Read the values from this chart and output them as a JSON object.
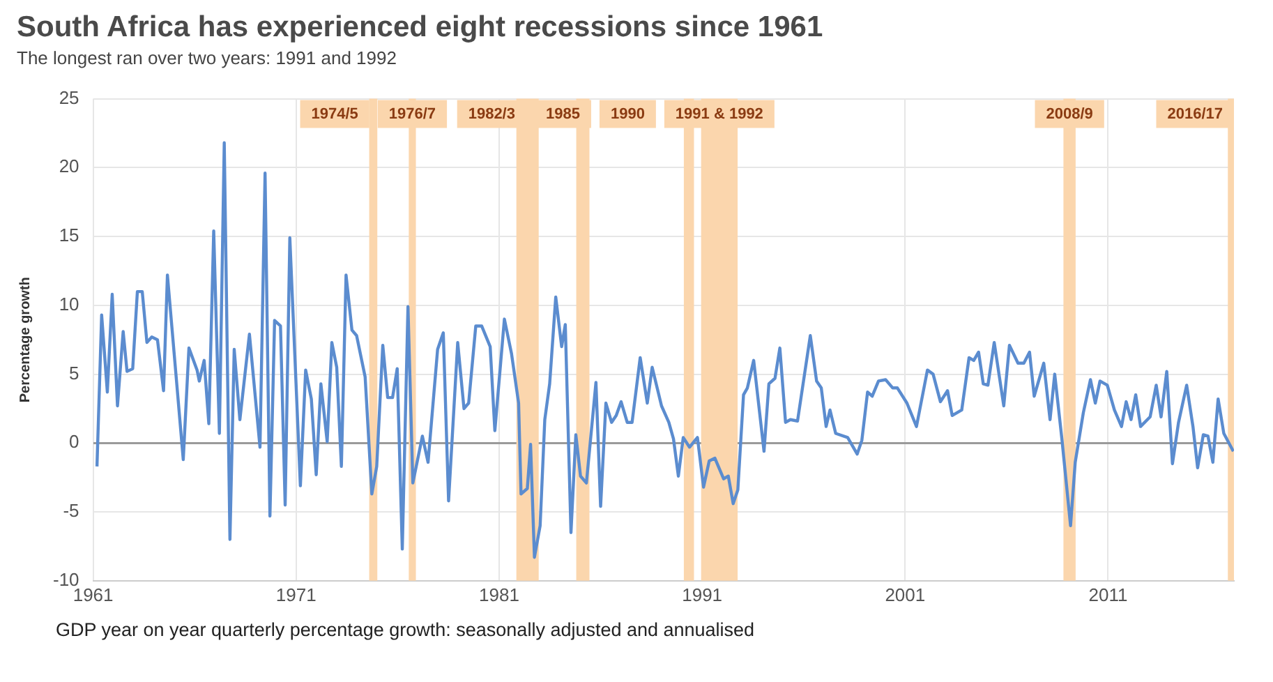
{
  "chart_data": {
    "type": "line",
    "title": "South Africa has experienced eight recessions since 1961",
    "subtitle": "The longest ran over two years: 1991 and 1992",
    "ylabel": "Percentage growth",
    "annotations": [
      "GDP year on year quarterly percentage growth: seasonally adjusted and annualised"
    ],
    "x": [
      1961.19,
      1961.42,
      1961.7,
      1961.94,
      1962.2,
      1962.48,
      1962.67,
      1962.95,
      1963.18,
      1963.42,
      1963.65,
      1963.89,
      1964.17,
      1964.47,
      1964.66,
      1965.44,
      1965.72,
      1966.12,
      1966.23,
      1966.47,
      1966.7,
      1966.94,
      1967.22,
      1967.46,
      1967.74,
      1967.95,
      1968.23,
      1968.7,
      1969.22,
      1969.47,
      1969.71,
      1969.94,
      1970.23,
      1970.46,
      1970.69,
      1971.21,
      1971.47,
      1971.75,
      1971.99,
      1972.22,
      1972.53,
      1972.76,
      1973.0,
      1973.23,
      1973.46,
      1973.75,
      1973.98,
      1974.4,
      1974.73,
      1974.97,
      1975.27,
      1975.51,
      1975.75,
      1975.98,
      1976.23,
      1976.51,
      1976.75,
      1977.22,
      1977.5,
      1977.97,
      1978.25,
      1978.51,
      1978.96,
      1979.27,
      1979.5,
      1979.85,
      1980.14,
      1980.56,
      1980.79,
      1981.26,
      1981.61,
      1981.96,
      1982.08,
      1982.39,
      1982.55,
      1982.74,
      1983.02,
      1983.25,
      1983.49,
      1983.79,
      1984.08,
      1984.26,
      1984.54,
      1984.78,
      1985.01,
      1985.3,
      1985.77,
      1986.0,
      1986.26,
      1986.54,
      1986.77,
      1987.01,
      1987.31,
      1987.55,
      1987.95,
      1988.3,
      1988.54,
      1989.0,
      1989.36,
      1989.59,
      1989.83,
      1990.07,
      1990.38,
      1990.77,
      1991.07,
      1991.35,
      1991.63,
      1992.06,
      1992.29,
      1992.53,
      1992.76,
      1993.04,
      1993.23,
      1993.54,
      1994.05,
      1994.29,
      1994.59,
      1994.83,
      1995.11,
      1995.35,
      1995.7,
      1996.33,
      1996.64,
      1996.87,
      1997.11,
      1997.3,
      1997.58,
      1998.17,
      1998.64,
      1998.87,
      1999.15,
      1999.38,
      1999.69,
      2000.04,
      2000.39,
      2000.62,
      2001.09,
      2001.56,
      2002.1,
      2002.38,
      2002.74,
      2003.09,
      2003.32,
      2003.79,
      2004.15,
      2004.38,
      2004.62,
      2004.85,
      2005.08,
      2005.39,
      2005.86,
      2006.14,
      2006.56,
      2006.85,
      2007.13,
      2007.36,
      2007.83,
      2008.14,
      2008.37,
      2008.73,
      2009.15,
      2009.38,
      2009.78,
      2010.13,
      2010.37,
      2010.6,
      2010.96,
      2011.31,
      2011.66,
      2011.89,
      2012.13,
      2012.36,
      2012.6,
      2013.07,
      2013.37,
      2013.61,
      2013.89,
      2014.17,
      2014.47,
      2014.87,
      2015.18,
      2015.41,
      2015.69,
      2015.92,
      2016.16,
      2016.42,
      2016.7,
      2017.17
    ],
    "values": [
      -1.7,
      9.3,
      3.7,
      10.8,
      2.7,
      8.1,
      5.2,
      5.4,
      11.0,
      11.0,
      7.3,
      7.7,
      7.5,
      3.8,
      12.2,
      -1.2,
      6.9,
      5.3,
      4.5,
      6.0,
      1.4,
      15.4,
      0.7,
      21.8,
      -7.0,
      6.8,
      1.7,
      7.9,
      -0.3,
      19.6,
      -5.3,
      8.9,
      8.5,
      -4.5,
      14.9,
      -3.1,
      5.3,
      3.2,
      -2.3,
      4.3,
      0.1,
      7.3,
      5.5,
      -1.7,
      12.2,
      8.2,
      7.8,
      4.8,
      -3.7,
      -1.7,
      7.1,
      3.3,
      3.3,
      5.4,
      -7.7,
      9.9,
      -2.9,
      0.5,
      -1.4,
      6.8,
      8.0,
      -4.2,
      7.3,
      2.5,
      2.9,
      8.5,
      8.5,
      7.0,
      0.9,
      9.0,
      6.5,
      2.9,
      -3.7,
      -3.3,
      -0.1,
      -8.3,
      -6.0,
      1.7,
      4.3,
      10.6,
      7.0,
      8.6,
      -6.5,
      0.6,
      -2.4,
      -2.9,
      4.4,
      -4.6,
      2.9,
      1.5,
      2.0,
      3.0,
      1.5,
      1.5,
      6.2,
      2.9,
      5.5,
      2.7,
      1.5,
      0.3,
      -2.4,
      0.4,
      -0.3,
      0.4,
      -3.2,
      -1.3,
      -1.1,
      -2.6,
      -2.4,
      -4.4,
      -3.4,
      3.5,
      4.0,
      6.0,
      -0.6,
      4.3,
      4.7,
      6.9,
      1.5,
      1.7,
      1.6,
      7.8,
      4.5,
      4.0,
      1.2,
      2.4,
      0.7,
      0.4,
      -0.8,
      0.2,
      3.7,
      3.4,
      4.5,
      4.6,
      4.0,
      4.0,
      2.9,
      1.2,
      5.3,
      5.0,
      3.0,
      3.8,
      2.0,
      2.4,
      6.2,
      6.0,
      6.6,
      4.3,
      4.2,
      7.3,
      2.7,
      7.1,
      5.8,
      5.8,
      6.6,
      3.4,
      5.8,
      1.7,
      5.0,
      0.2,
      -6.0,
      -1.4,
      2.2,
      4.6,
      2.9,
      4.5,
      4.2,
      2.4,
      1.2,
      3.0,
      1.7,
      3.5,
      1.2,
      1.9,
      4.2,
      1.9,
      5.2,
      -1.5,
      1.5,
      4.2,
      1.2,
      -1.8,
      0.6,
      0.5,
      -1.4,
      3.2,
      0.7,
      -0.6
    ],
    "color": "#5b8ccf",
    "xlim": [
      1961,
      2017.2
    ],
    "xticks": [
      1961,
      1971,
      1981,
      1991,
      2001,
      2011
    ],
    "ylim": [
      -10,
      25
    ],
    "yticks": [
      -10,
      -5,
      0,
      5,
      10,
      15,
      20,
      25
    ],
    "grid": true,
    "marker": "none",
    "bands": [
      {
        "axis": "x",
        "from": 1974.6,
        "to": 1975.0,
        "label": "1974/5",
        "color": "#fbd6ad"
      },
      {
        "axis": "x",
        "from": 1976.55,
        "to": 1976.9,
        "label": "1976/7",
        "color": "#fbd6ad"
      },
      {
        "axis": "x",
        "from": 1981.85,
        "to": 1982.95,
        "label": "1982/3",
        "color": "#fbd6ad"
      },
      {
        "axis": "x",
        "from": 1984.8,
        "to": 1985.45,
        "label": "1985",
        "color": "#fbd6ad"
      },
      {
        "axis": "x",
        "from": 1990.1,
        "to": 1990.6,
        "label": "1990",
        "color": "#fbd6ad"
      },
      {
        "axis": "x",
        "from": 1990.95,
        "to": 1992.75,
        "label": "1991 & 1992",
        "color": "#fbd6ad"
      },
      {
        "axis": "x",
        "from": 2008.8,
        "to": 2009.4,
        "label": "2008/9",
        "color": "#fbd6ad"
      },
      {
        "axis": "x",
        "from": 2016.9,
        "to": 2017.2,
        "label": "2016/17",
        "color": "#fbd6ad"
      }
    ]
  }
}
